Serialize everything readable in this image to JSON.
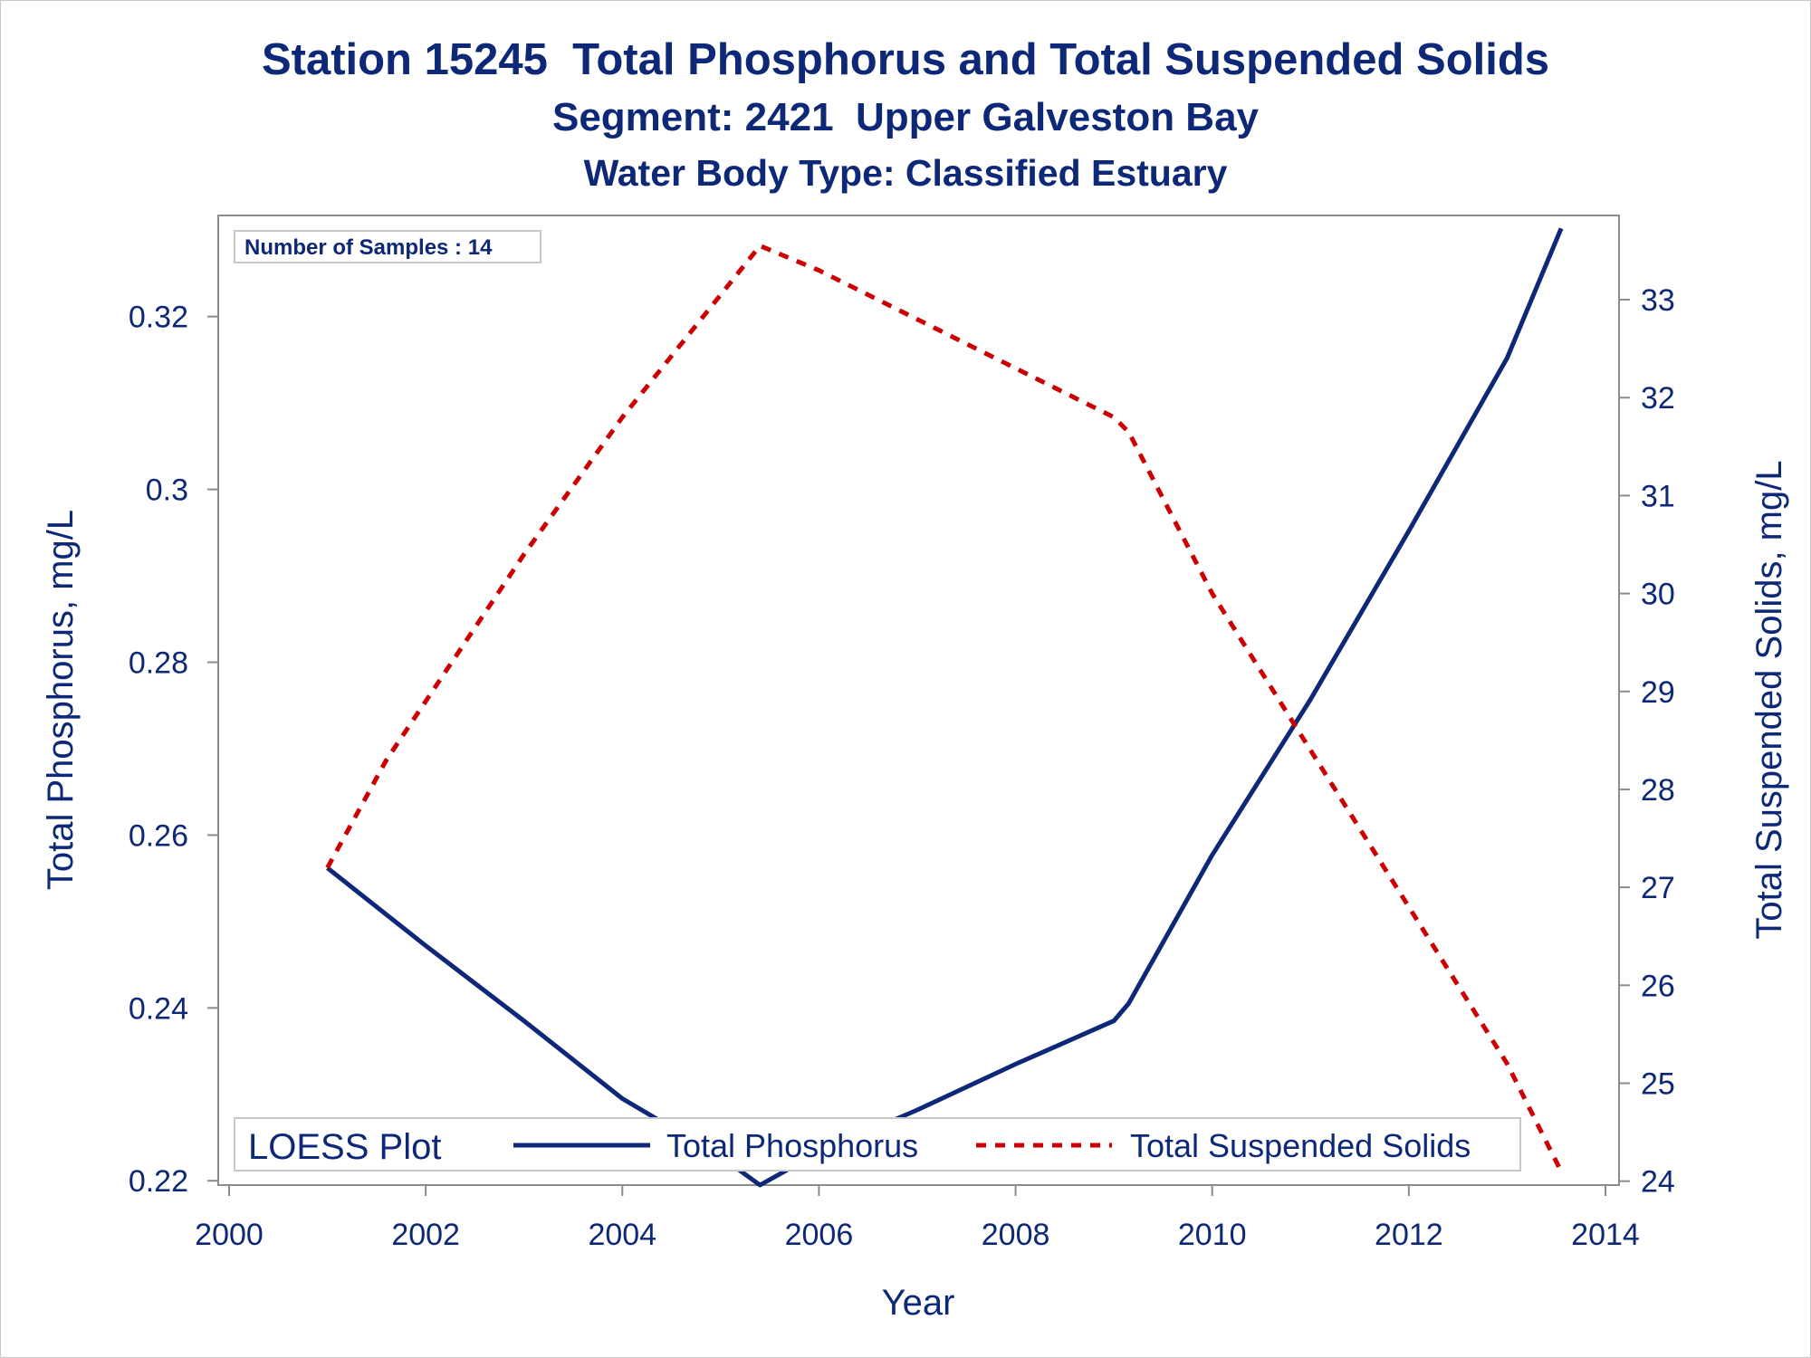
{
  "titles": {
    "line1": "Station 15245  Total Phosphorus and Total Suspended Solids",
    "line2": "Segment: 2421  Upper Galveston Bay",
    "line3": "Water Body Type: Classified Estuary"
  },
  "inset": {
    "text": "Number of Samples : 14"
  },
  "legend": {
    "title": "LOESS Plot",
    "items": [
      {
        "label": "Total Phosphorus",
        "color": "#0e2878",
        "style": "solid"
      },
      {
        "label": "Total Suspended Solids",
        "color": "#cc0000",
        "style": "dashed"
      }
    ]
  },
  "chart_data": {
    "type": "line",
    "xlabel": "Year",
    "ylabel": "Total Phosphorus, mg/L",
    "y2label": "Total Suspended Solids, mg/L",
    "xlim": [
      2000,
      2014
    ],
    "xticks": [
      2000,
      2002,
      2004,
      2006,
      2008,
      2010,
      2012,
      2014
    ],
    "ylim": [
      0.2195,
      0.3317
    ],
    "yticks": [
      0.22,
      0.24,
      0.26,
      0.28,
      0.3,
      0.32
    ],
    "ytick_labels": [
      "0.22",
      "0.24",
      "0.26",
      "0.28",
      "0.3",
      "0.32"
    ],
    "y2lim": [
      23.96,
      33.86
    ],
    "y2ticks": [
      24,
      25,
      26,
      27,
      28,
      29,
      30,
      31,
      32,
      33
    ],
    "grid": false,
    "legend_position": "bottom-inside",
    "series": [
      {
        "name": "Total Phosphorus",
        "axis": "left",
        "color": "#0e2878",
        "style": "solid",
        "x": [
          2001.0,
          2002.0,
          2003.0,
          2004.0,
          2005.0,
          2005.4,
          2006.0,
          2007.0,
          2008.0,
          2009.0,
          2009.15,
          2010.0,
          2011.0,
          2012.0,
          2013.0,
          2013.55
        ],
        "y": [
          0.2562,
          0.2472,
          0.2385,
          0.2295,
          0.2228,
          0.2195,
          0.2233,
          0.2282,
          0.2335,
          0.2385,
          0.2405,
          0.2577,
          0.2757,
          0.2952,
          0.3152,
          0.3302
        ]
      },
      {
        "name": "Total Suspended Solids",
        "axis": "right",
        "color": "#cc0000",
        "style": "dashed",
        "x": [
          2001.0,
          2001.6,
          2002.0,
          2003.0,
          2004.0,
          2005.4,
          2006.0,
          2007.0,
          2008.0,
          2009.0,
          2009.15,
          2010.0,
          2011.0,
          2012.0,
          2013.0,
          2013.55
        ],
        "y": [
          27.2,
          28.3,
          28.9,
          30.4,
          31.8,
          33.55,
          33.3,
          32.8,
          32.3,
          31.8,
          31.65,
          30.0,
          28.4,
          26.8,
          25.2,
          24.1
        ]
      }
    ]
  }
}
